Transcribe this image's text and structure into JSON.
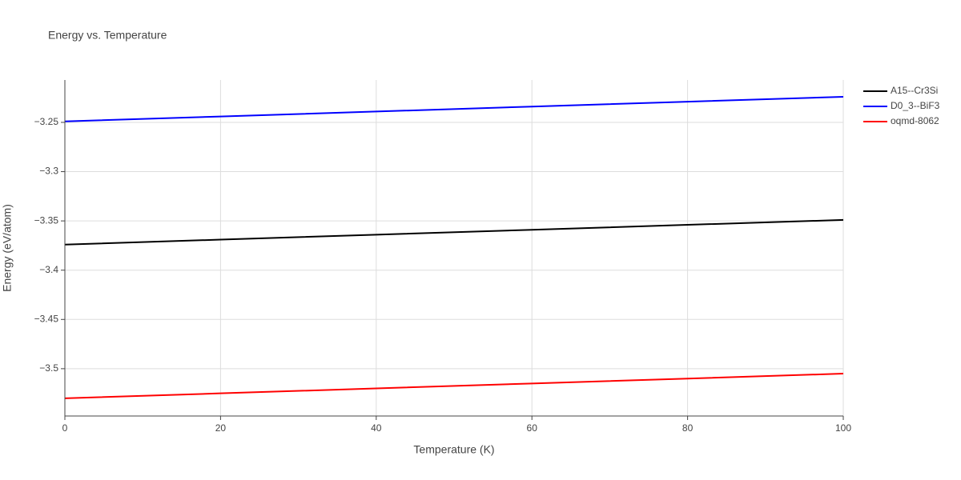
{
  "chart_data": {
    "type": "line",
    "title": "Energy vs. Temperature",
    "x_label": "Temperature (K)",
    "y_label": "Energy (eV/atom)",
    "x": [
      0,
      20,
      40,
      60,
      80,
      100
    ],
    "series": [
      {
        "name": "A15--Cr3Si",
        "color": "#000000",
        "values": [
          -3.374,
          -3.369,
          -3.364,
          -3.359,
          -3.354,
          -3.349
        ]
      },
      {
        "name": "D0_3--BiF3",
        "color": "#0000ff",
        "values": [
          -3.249,
          -3.244,
          -3.239,
          -3.234,
          -3.229,
          -3.224
        ]
      },
      {
        "name": "oqmd-8062",
        "color": "#ff0000",
        "values": [
          -3.53,
          -3.525,
          -3.52,
          -3.515,
          -3.51,
          -3.505
        ]
      }
    ],
    "xlim": [
      0,
      100
    ],
    "xticks": [
      0,
      20,
      40,
      60,
      80,
      100
    ],
    "ylim": [
      -3.548,
      -3.207
    ],
    "yticks": [
      {
        "value": -3.5,
        "label": "−3.5"
      },
      {
        "value": -3.45,
        "label": "−3.45"
      },
      {
        "value": -3.4,
        "label": "−3.4"
      },
      {
        "value": -3.35,
        "label": "−3.35"
      },
      {
        "value": -3.3,
        "label": "−3.3"
      },
      {
        "value": -3.25,
        "label": "−3.25"
      }
    ],
    "grid": true,
    "legend": "right"
  }
}
